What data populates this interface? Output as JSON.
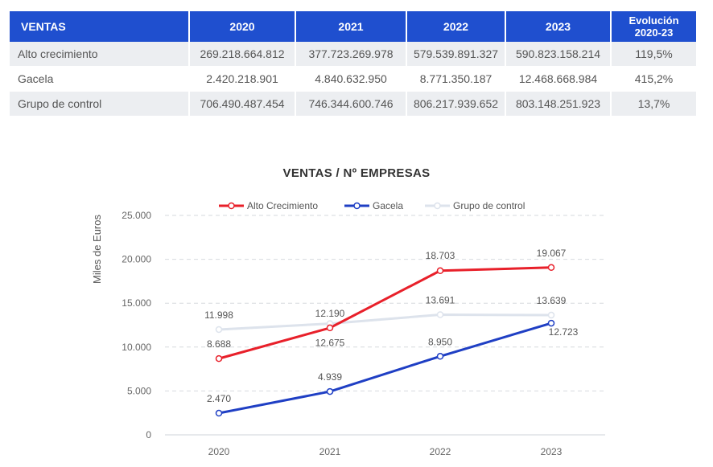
{
  "table": {
    "headers": [
      "VENTAS",
      "2020",
      "2021",
      "2022",
      "2023"
    ],
    "evo_header_line1": "Evolución",
    "evo_header_line2": "2020-23",
    "rows": [
      {
        "name": "Alto crecimiento",
        "values": [
          "269.218.664.812",
          "377.723.269.978",
          "579.539.891.327",
          "590.823.158.214"
        ],
        "evo": "119,5%"
      },
      {
        "name": "Gacela",
        "values": [
          "2.420.218.901",
          "4.840.632.950",
          "8.771.350.187",
          "12.468.668.984"
        ],
        "evo": "415,2%"
      },
      {
        "name": "Grupo de control",
        "values": [
          "706.490.487.454",
          "746.344.600.746",
          "806.217.939.652",
          "803.148.251.923"
        ],
        "evo": "13,7%"
      }
    ]
  },
  "chart_data": {
    "type": "line",
    "title": "VENTAS / Nº EMPRESAS",
    "ylabel": "Miles de Euros",
    "xlabel": "",
    "categories": [
      "2020",
      "2021",
      "2022",
      "2023"
    ],
    "ylim": [
      0,
      25000
    ],
    "yticks": [
      0,
      5000,
      10000,
      15000,
      20000,
      25000
    ],
    "ytick_labels": [
      "0",
      "5.000",
      "10.000",
      "15.000",
      "20.000",
      "25.000"
    ],
    "grid": true,
    "legend_position": "top",
    "series": [
      {
        "name": "Alto Crecimiento",
        "color": "#e8202a",
        "values": [
          8688,
          12190,
          18703,
          19067
        ],
        "labels": [
          "8.688",
          "12.190",
          "18.703",
          "19.067"
        ]
      },
      {
        "name": "Gacela",
        "color": "#1f3fc4",
        "values": [
          2470,
          4939,
          8950,
          12723
        ],
        "labels": [
          "2.470",
          "4.939",
          "8.950",
          "12.723"
        ]
      },
      {
        "name": "Grupo de control",
        "color": "#dde3ec",
        "values": [
          11998,
          12675,
          13691,
          13639
        ],
        "labels": [
          "11.998",
          "12.675",
          "13.691",
          "13.639"
        ]
      }
    ]
  }
}
